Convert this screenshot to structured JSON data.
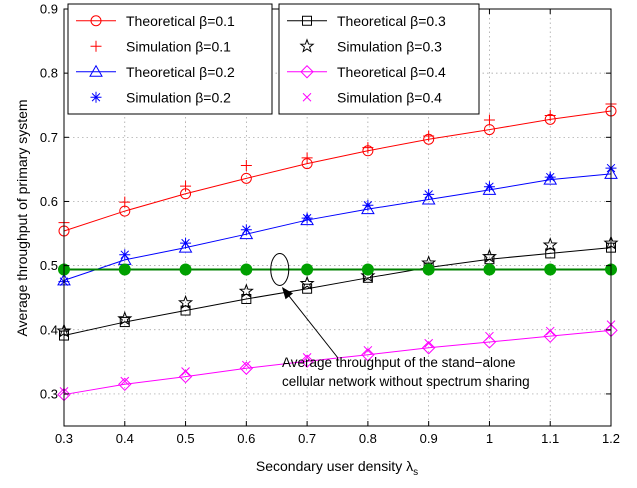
{
  "chart_data": {
    "type": "line",
    "xlabel": "Secondary user density λ",
    "xlabel_sub": "s",
    "ylabel": "Average throughput of primary system",
    "xlim": [
      0.3,
      1.2
    ],
    "ylim": [
      0.25,
      0.9
    ],
    "x_ticks": [
      "0.3",
      "0.4",
      "0.5",
      "0.6",
      "0.7",
      "0.8",
      "0.9",
      "1",
      "1.1",
      "1.2"
    ],
    "y_ticks": [
      "0.3",
      "0.4",
      "0.5",
      "0.6",
      "0.7",
      "0.8",
      "0.9"
    ],
    "grid": true,
    "legend_position": "top",
    "x": [
      0.3,
      0.4,
      0.5,
      0.6,
      0.7,
      0.8,
      0.9,
      1.0,
      1.1,
      1.2
    ],
    "series": [
      {
        "name": "Theoretical β=0.1",
        "kind": "theoretical",
        "marker": "circle",
        "color": "#ff0000",
        "values": [
          0.554,
          0.585,
          0.612,
          0.636,
          0.659,
          0.679,
          0.697,
          0.712,
          0.728,
          0.741
        ]
      },
      {
        "name": "Simulation β=0.1",
        "kind": "simulation",
        "marker": "plus",
        "color": "#ff0000",
        "values": [
          0.567,
          0.599,
          0.624,
          0.656,
          0.668,
          0.684,
          0.702,
          0.727,
          0.734,
          0.752
        ]
      },
      {
        "name": "Theoretical β=0.2",
        "kind": "theoretical",
        "marker": "triangle",
        "color": "#0000ff",
        "values": [
          0.477,
          0.509,
          0.528,
          0.549,
          0.571,
          0.588,
          0.603,
          0.618,
          0.634,
          0.643
        ]
      },
      {
        "name": "Simulation β=0.2",
        "kind": "simulation",
        "marker": "asterisk",
        "color": "#0000ff",
        "values": [
          0.475,
          0.517,
          0.535,
          0.556,
          0.574,
          0.594,
          0.611,
          0.623,
          0.638,
          0.652
        ]
      },
      {
        "name": "Theoretical β=0.3",
        "kind": "theoretical",
        "marker": "square",
        "color": "#000000",
        "values": [
          0.391,
          0.412,
          0.43,
          0.448,
          0.464,
          0.481,
          0.497,
          0.51,
          0.519,
          0.528
        ]
      },
      {
        "name": "Simulation β=0.3",
        "kind": "simulation",
        "marker": "star",
        "color": "#000000",
        "values": [
          0.398,
          0.417,
          0.442,
          0.46,
          0.472,
          0.484,
          0.504,
          0.514,
          0.532,
          0.535
        ]
      },
      {
        "name": "Theoretical β=0.4",
        "kind": "theoretical",
        "marker": "diamond",
        "color": "#ff00ff",
        "values": [
          0.299,
          0.315,
          0.327,
          0.34,
          0.351,
          0.361,
          0.372,
          0.381,
          0.39,
          0.399
        ]
      },
      {
        "name": "Simulation β=0.4",
        "kind": "simulation",
        "marker": "cross",
        "color": "#ff00ff",
        "values": [
          0.304,
          0.32,
          0.335,
          0.345,
          0.357,
          0.368,
          0.379,
          0.39,
          0.398,
          0.408
        ]
      },
      {
        "name": "",
        "kind": "baseline",
        "marker": "filled-circle",
        "color": "#008000",
        "marker_color": "#00a000",
        "values": [
          0.494,
          0.494,
          0.494,
          0.494,
          0.494,
          0.494,
          0.494,
          0.494,
          0.494,
          0.494
        ]
      }
    ],
    "annotation": {
      "lines": [
        "Average throughput of the stand−alone",
        "cellular network without spectrum sharing"
      ],
      "ellipse_center": [
        0.655,
        0.494
      ],
      "arrow_tip": [
        0.655,
        0.465
      ]
    }
  }
}
